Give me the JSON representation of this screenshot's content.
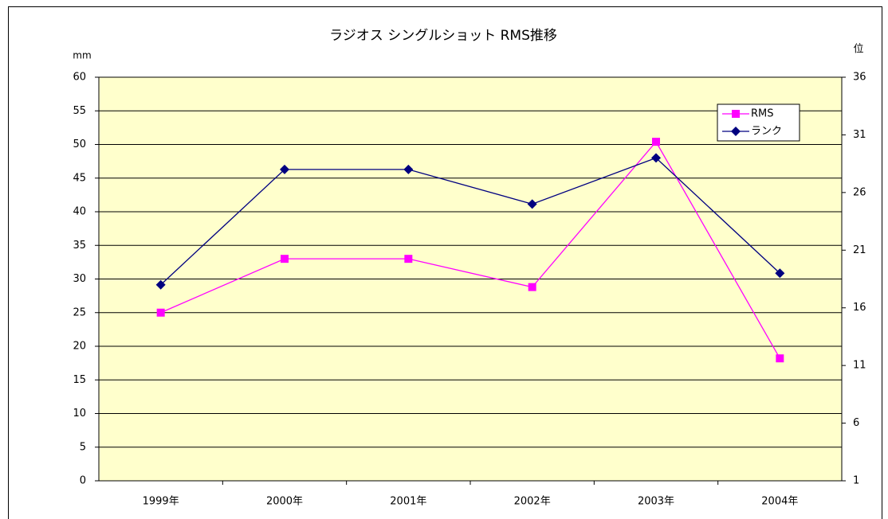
{
  "chart_data": {
    "type": "line",
    "title": "ラジオス シングルショット RMS推移",
    "y_label": "mm",
    "y2_label": "位",
    "categories": [
      "1999年",
      "2000年",
      "2001年",
      "2002年",
      "2003年",
      "2004年"
    ],
    "series": [
      {
        "name": "RMS",
        "color": "#ff00ff",
        "marker": "square",
        "values": [
          25,
          33,
          33,
          28.8,
          50.4,
          18.2
        ]
      },
      {
        "name": "ランク",
        "color": "#000080",
        "marker": "diamond",
        "axis": "y2",
        "values": [
          18,
          28,
          28,
          25,
          29,
          19
        ]
      }
    ],
    "ylim": [
      0,
      60
    ],
    "yticks": [
      0,
      5,
      10,
      15,
      20,
      25,
      30,
      35,
      40,
      45,
      50,
      55,
      60
    ],
    "y2lim": [
      1,
      36
    ],
    "y2ticks": [
      1,
      6,
      11,
      16,
      21,
      26,
      31,
      36
    ],
    "grid": true,
    "legend": "upper right",
    "background": "#ffffcc"
  }
}
